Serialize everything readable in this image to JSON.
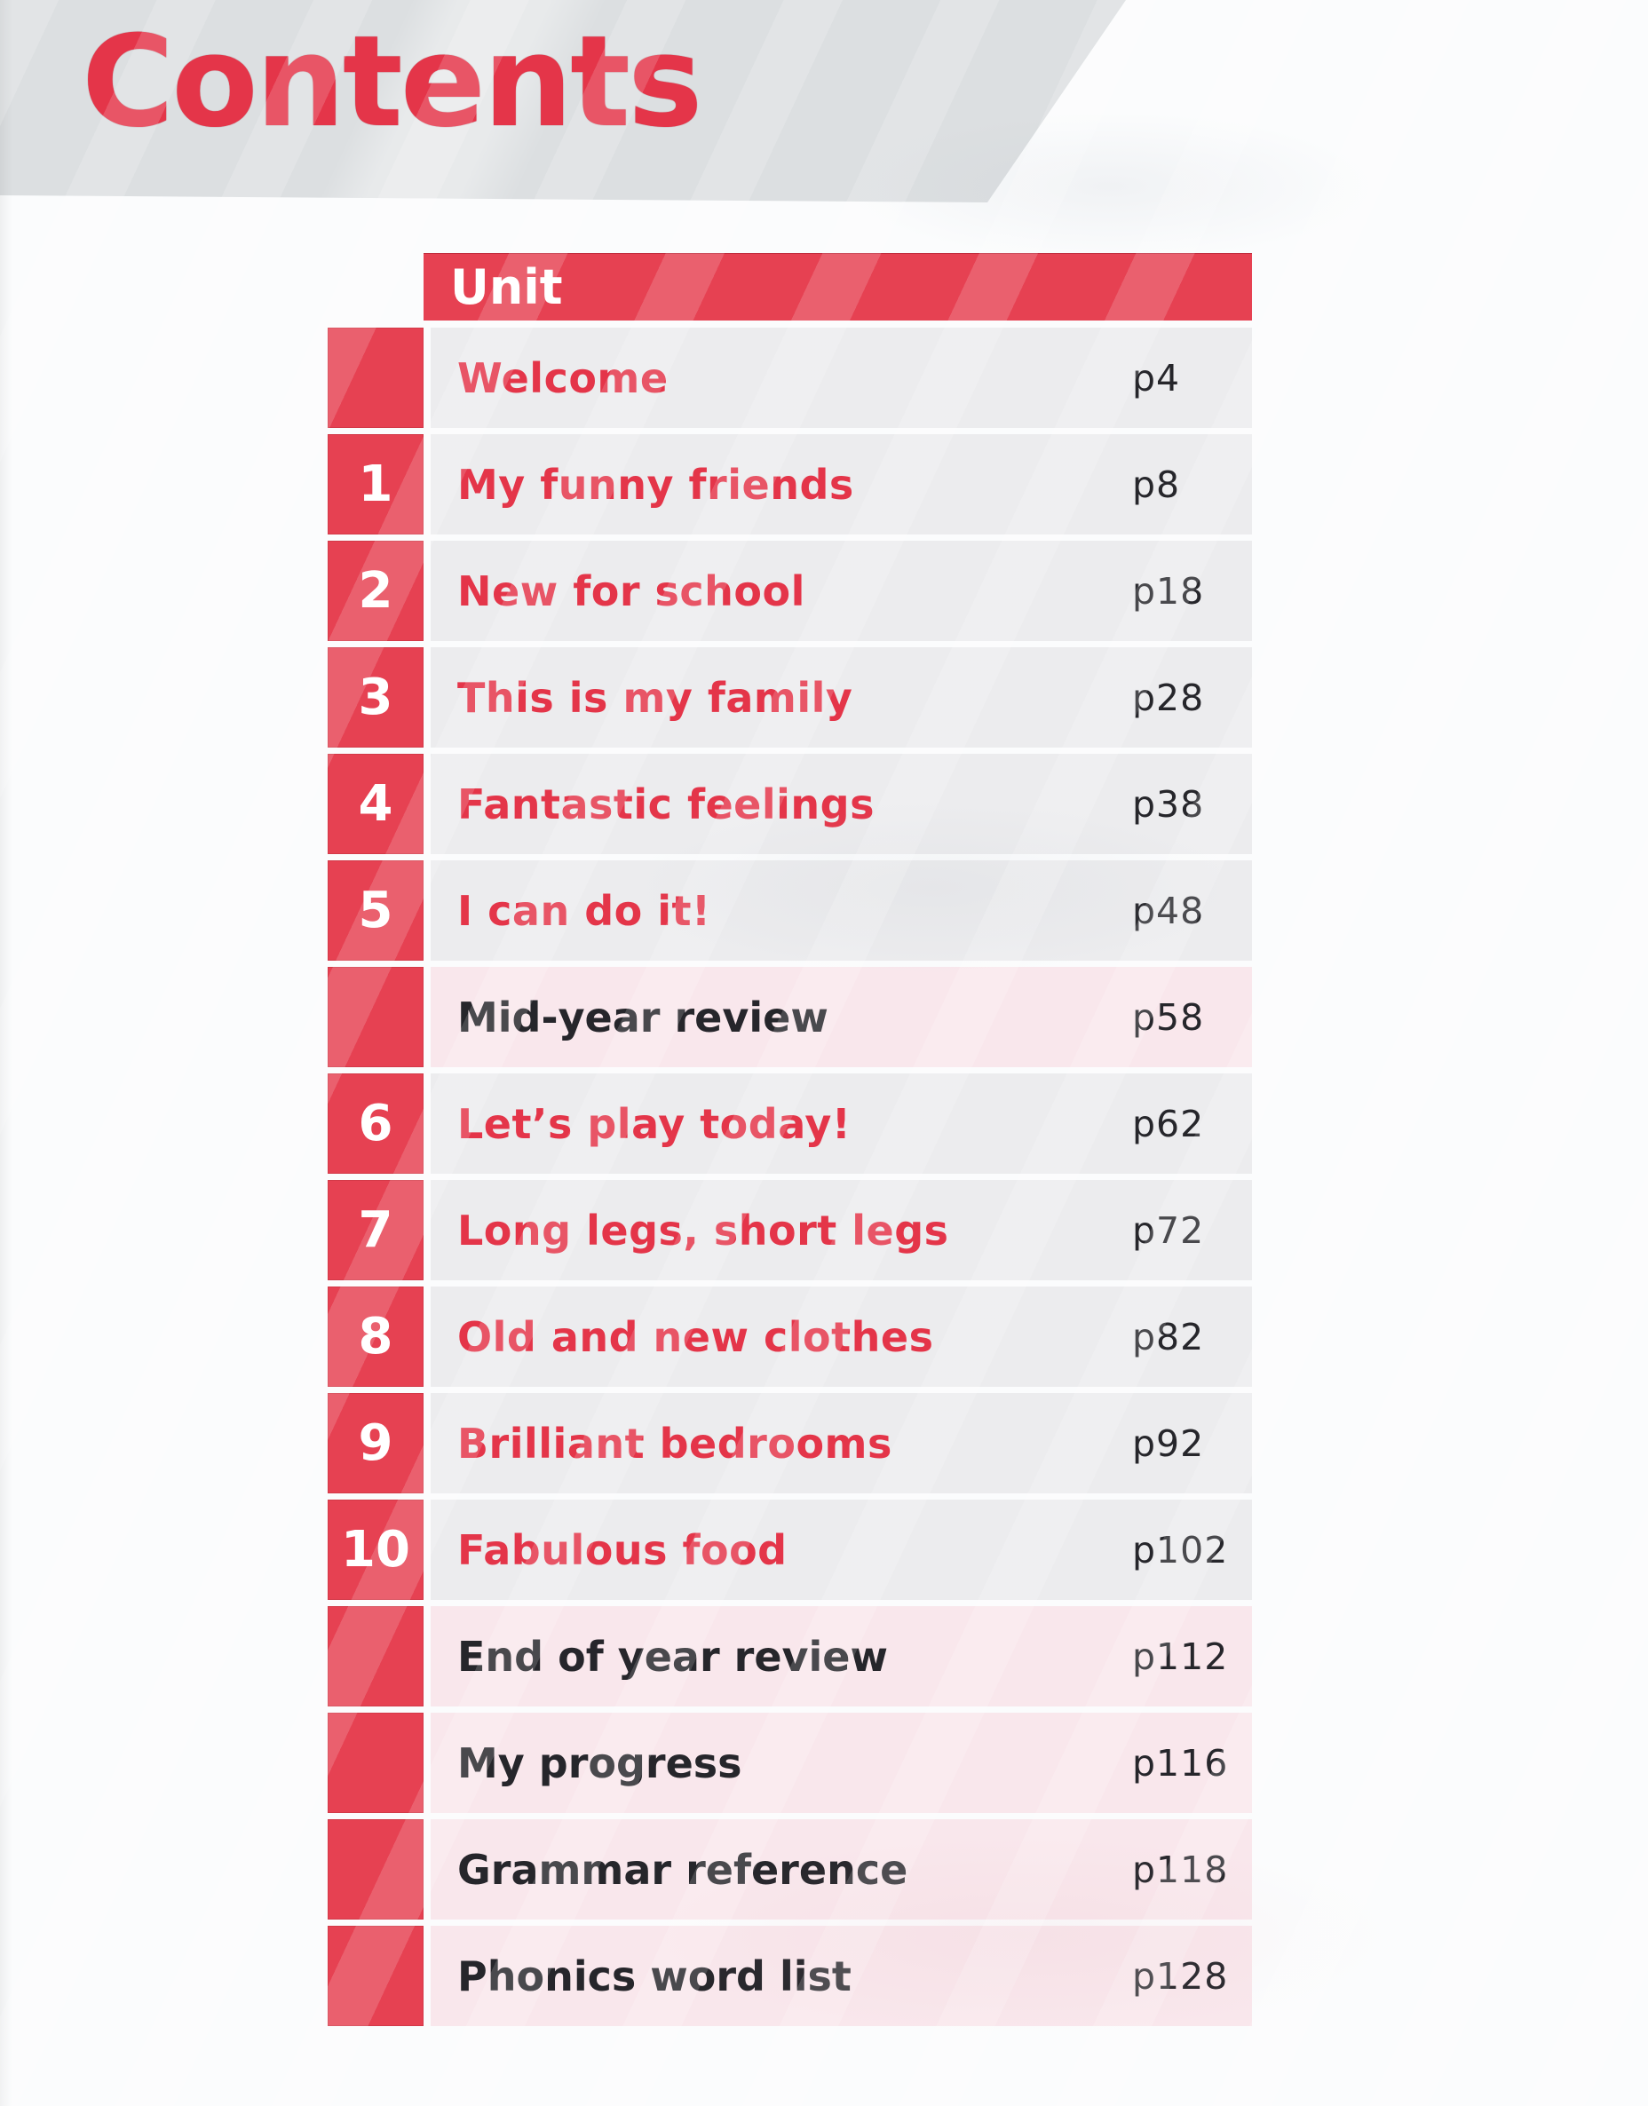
{
  "title": "Contents",
  "table": {
    "header_label": "Unit",
    "rows": [
      {
        "num": "",
        "title": "Welcome",
        "page": "p4",
        "kind": "unit"
      },
      {
        "num": "1",
        "title": "My funny friends",
        "page": "p8",
        "kind": "unit"
      },
      {
        "num": "2",
        "title": "New for school",
        "page": "p18",
        "kind": "unit"
      },
      {
        "num": "3",
        "title": "This is my family",
        "page": "p28",
        "kind": "unit"
      },
      {
        "num": "4",
        "title": "Fantastic feelings",
        "page": "p38",
        "kind": "unit"
      },
      {
        "num": "5",
        "title": "I can do it!",
        "page": "p48",
        "kind": "unit"
      },
      {
        "num": "",
        "title": "Mid-year review",
        "page": "p58",
        "kind": "review"
      },
      {
        "num": "6",
        "title": "Let’s play today!",
        "page": "p62",
        "kind": "unit"
      },
      {
        "num": "7",
        "title": "Long legs, short legs",
        "page": "p72",
        "kind": "unit"
      },
      {
        "num": "8",
        "title": "Old and new clothes",
        "page": "p82",
        "kind": "unit"
      },
      {
        "num": "9",
        "title": "Brilliant bedrooms",
        "page": "p92",
        "kind": "unit"
      },
      {
        "num": "10",
        "title": "Fabulous food",
        "page": "p102",
        "kind": "unit"
      },
      {
        "num": "",
        "title": "End of year review",
        "page": "p112",
        "kind": "review"
      },
      {
        "num": "",
        "title": "My progress",
        "page": "p116",
        "kind": "review"
      },
      {
        "num": "",
        "title": "Grammar reference",
        "page": "p118",
        "kind": "review"
      },
      {
        "num": "",
        "title": "Phonics word list",
        "page": "p128",
        "kind": "review"
      }
    ]
  },
  "colors": {
    "accent_red": "#e64152",
    "title_red": "#e43549",
    "row_gray": "#ececee",
    "row_pink": "#f9e7ec",
    "band_gray": "#dcdfe1",
    "text_dark": "#26262b"
  }
}
